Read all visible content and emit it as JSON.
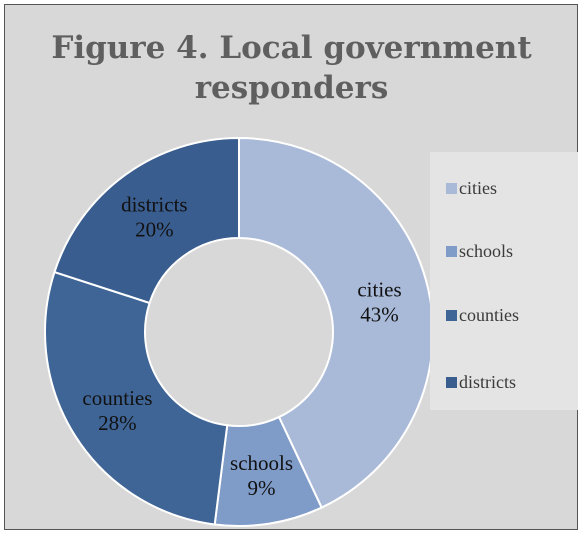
{
  "chart_data": {
    "type": "pie",
    "variant": "donut",
    "title": "Figure 4. Local government responders",
    "categories": [
      "cities",
      "schools",
      "counties",
      "districts"
    ],
    "values": [
      43,
      9,
      28,
      20
    ],
    "labels": [
      "43%",
      "9%",
      "28%",
      "20%"
    ],
    "colors": [
      "#a9b9d8",
      "#7f9bc8",
      "#3f6596",
      "#3a5d8f"
    ],
    "legend_position": "right",
    "background": "#d8d8d8"
  }
}
